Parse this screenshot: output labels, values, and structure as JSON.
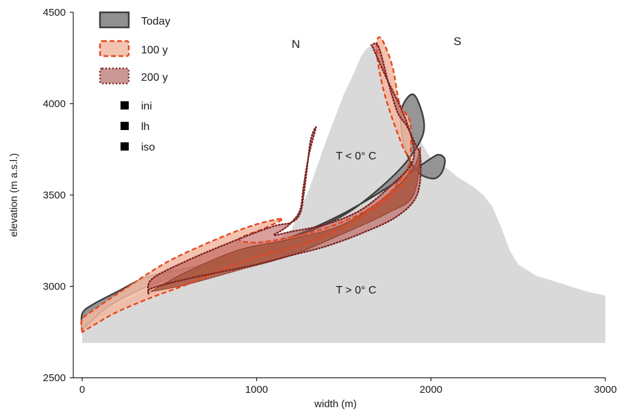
{
  "chart_data": {
    "type": "area",
    "title": "",
    "xlabel": "width (m)",
    "ylabel": "elevation (m a.s.l.)",
    "xlim": [
      0,
      3000
    ],
    "ylim": [
      2500,
      4500
    ],
    "xticks": [
      "0",
      "1000",
      "2000",
      "3000"
    ],
    "yticks": [
      "2500",
      "3000",
      "3500",
      "4000",
      "4500"
    ],
    "grid": false,
    "legend_position": "top-left",
    "colors": {
      "mountain": "#d9d9d9",
      "today": "#909090",
      "today_edge": "#3f3f3f",
      "y100": "#f2b8a2",
      "y100_edge": "#e6461c",
      "y200": "#b8504a",
      "y200_edge": "#7a1f1f",
      "overlap": "#a8553d"
    },
    "legend": [
      {
        "name": "Today",
        "style": "solid"
      },
      {
        "name": "100 y",
        "style": "dashed"
      },
      {
        "name": "200 y",
        "style": "dotted"
      }
    ],
    "marker_legend": [
      "ini",
      "lh",
      "iso"
    ],
    "annotations": {
      "north": "N",
      "south": "S",
      "cold": "T < 0° C",
      "warm": "T > 0° C"
    },
    "mountain": {
      "x": [
        0,
        0,
        20,
        200,
        400,
        600,
        800,
        1000,
        1200,
        1300,
        1400,
        1500,
        1550,
        1600,
        1630,
        1660,
        1700,
        1750,
        1800,
        1850,
        1900,
        1950,
        2000,
        2050,
        2100,
        2150,
        2200,
        2250,
        2300,
        2350,
        2400,
        2450,
        2500,
        2600,
        2700,
        2800,
        2900,
        3000,
        3000
      ],
      "y": [
        2690,
        2800,
        2830,
        2900,
        3000,
        3050,
        3100,
        3160,
        3310,
        3530,
        3800,
        4050,
        4150,
        4260,
        4300,
        4320,
        4300,
        4220,
        4050,
        3960,
        3870,
        3780,
        3700,
        3670,
        3640,
        3600,
        3570,
        3540,
        3500,
        3440,
        3330,
        3200,
        3120,
        3060,
        3030,
        3000,
        2970,
        2950,
        2690
      ]
    },
    "series": [
      {
        "name": "Today",
        "x": [
          0,
          0,
          60,
          200,
          370,
          600,
          900,
          1200,
          1500,
          1800,
          2000,
          2050,
          2080,
          2060,
          2010,
          1920,
          1850,
          1830,
          1900,
          1960,
          1930,
          1800,
          1550,
          1300,
          1050,
          800,
          550,
          350,
          150,
          40,
          0
        ],
        "y": [
          2760,
          2850,
          2900,
          2970,
          3050,
          3100,
          3170,
          3270,
          3400,
          3570,
          3700,
          3720,
          3690,
          3620,
          3590,
          3630,
          3760,
          3960,
          4050,
          3900,
          3780,
          3620,
          3420,
          3300,
          3220,
          3130,
          3060,
          2990,
          2890,
          2800,
          2760
        ]
      },
      {
        "name": "100 y",
        "x": [
          0,
          0,
          80,
          250,
          500,
          800,
          1000,
          1150,
          1050,
          900,
          1000,
          1200,
          1400,
          1600,
          1750,
          1850,
          1880,
          1840,
          1750,
          1700,
          1690,
          1720,
          1780,
          1820,
          1880,
          1880,
          1840,
          1600,
          1400,
          1200,
          1000,
          800,
          600,
          400,
          200,
          70,
          0
        ],
        "y": [
          2750,
          2820,
          2880,
          2990,
          3140,
          3270,
          3340,
          3370,
          3320,
          3260,
          3240,
          3270,
          3320,
          3400,
          3500,
          3620,
          3700,
          3760,
          4000,
          4200,
          4340,
          4350,
          4200,
          4000,
          3900,
          3700,
          3560,
          3380,
          3280,
          3210,
          3160,
          3090,
          3010,
          2940,
          2860,
          2790,
          2750
        ]
      },
      {
        "name": "200 y",
        "x": [
          380,
          400,
          600,
          900,
          1100,
          1200,
          1250,
          1270,
          1290,
          1310,
          1340,
          1300,
          1270,
          1250,
          1200,
          1150,
          1100,
          1200,
          1400,
          1600,
          1780,
          1900,
          1860,
          1740,
          1670,
          1660,
          1700,
          1760,
          1810,
          1860,
          1900,
          1940,
          1920,
          1800,
          1600,
          1400,
          1200,
          1000,
          800,
          600,
          400,
          380
        ],
        "y": [
          2960,
          3040,
          3140,
          3260,
          3330,
          3350,
          3400,
          3500,
          3650,
          3800,
          3870,
          3720,
          3550,
          3420,
          3350,
          3310,
          3280,
          3300,
          3340,
          3420,
          3560,
          3700,
          3900,
          4150,
          4300,
          4320,
          4310,
          4100,
          3950,
          3880,
          3800,
          3700,
          3500,
          3380,
          3290,
          3220,
          3170,
          3120,
          3080,
          3040,
          2990,
          2960
        ]
      }
    ],
    "overlap_band": {
      "x": [
        390,
        600,
        900,
        1200,
        1500,
        1750,
        1900,
        1940,
        1900,
        1750,
        1500,
        1200,
        900,
        600,
        390
      ],
      "y": [
        2970,
        3080,
        3200,
        3260,
        3340,
        3500,
        3650,
        3760,
        3500,
        3400,
        3290,
        3170,
        3090,
        3010,
        2970
      ]
    }
  }
}
